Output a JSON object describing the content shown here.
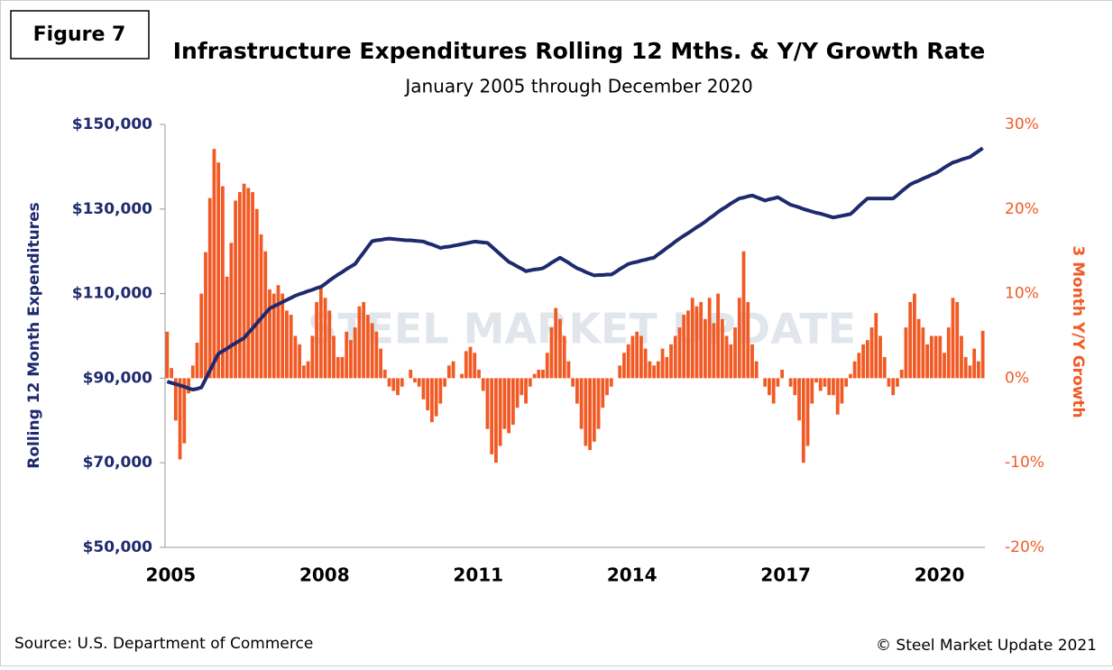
{
  "figure_label": "Figure 7",
  "chart_data": {
    "type": "combo",
    "title": "Infrastructure Expenditures Rolling 12 Mths. & Y/Y Growth Rate",
    "subtitle": "January 2005 through December 2020",
    "y_label": "Rolling 12 Month Expenditures",
    "y2_label": "3 Month Y/Y Growth",
    "watermark": "STEEL MARKET UPDATE",
    "source": "Source: U.S. Department of Commerce",
    "copyright": "© Steel Market Update 2021",
    "categories": [
      "2005",
      null,
      null,
      null,
      null,
      null,
      null,
      null,
      null,
      null,
      null,
      null,
      null,
      null,
      null,
      null,
      null,
      null,
      null,
      null,
      null,
      null,
      null,
      null,
      null,
      null,
      null,
      null,
      null,
      null,
      null,
      null,
      null,
      null,
      null,
      null,
      "2008",
      null,
      null,
      null,
      null,
      null,
      null,
      null,
      null,
      null,
      null,
      null,
      null,
      null,
      null,
      null,
      null,
      null,
      null,
      null,
      null,
      null,
      null,
      null,
      null,
      null,
      null,
      null,
      null,
      null,
      null,
      null,
      null,
      null,
      null,
      null,
      "2011",
      null,
      null,
      null,
      null,
      null,
      null,
      null,
      null,
      null,
      null,
      null,
      null,
      null,
      null,
      null,
      null,
      null,
      null,
      null,
      null,
      null,
      null,
      null,
      null,
      null,
      null,
      null,
      null,
      null,
      null,
      null,
      null,
      null,
      null,
      null,
      "2014",
      null,
      null,
      null,
      null,
      null,
      null,
      null,
      null,
      null,
      null,
      null,
      null,
      null,
      null,
      null,
      null,
      null,
      null,
      null,
      null,
      null,
      null,
      null,
      null,
      null,
      null,
      null,
      null,
      null,
      null,
      null,
      null,
      null,
      null,
      null,
      "2017",
      null,
      null,
      null,
      null,
      null,
      null,
      null,
      null,
      null,
      null,
      null,
      null,
      null,
      null,
      null,
      null,
      null,
      null,
      null,
      null,
      null,
      null,
      null,
      null,
      null,
      null,
      null,
      null,
      null,
      null,
      null,
      null,
      null,
      null,
      null,
      "2020",
      null,
      null,
      null,
      null,
      null,
      null,
      null,
      null,
      null,
      null,
      null
    ],
    "series": [
      {
        "type": "bar",
        "axis": "y2",
        "color": "#f15a24",
        "values": [
          5.5,
          1.2,
          -5,
          -9.6,
          -7.7,
          -1.8,
          1.5,
          4.2,
          10,
          14.9,
          21.3,
          27.1,
          25.5,
          22.7,
          12,
          16,
          21,
          22,
          23,
          22.5,
          22,
          20,
          17,
          15,
          10.5,
          10,
          11,
          10,
          8,
          7.5,
          5,
          4,
          1.5,
          2,
          5,
          9,
          10.8,
          9.5,
          8,
          5,
          2.5,
          2.5,
          5.5,
          4.5,
          6,
          8.5,
          9,
          7.5,
          6.5,
          5.5,
          3.5,
          1,
          -1,
          -1.5,
          -2,
          -1,
          0,
          1,
          -0.5,
          -1,
          -2.5,
          -3.8,
          -5.2,
          -4.5,
          -3,
          -1,
          1.5,
          2,
          0,
          0.5,
          3.2,
          3.7,
          3,
          1,
          -1.5,
          -6,
          -9,
          -10,
          -8,
          -6,
          -6.5,
          -5.5,
          -3.5,
          -2,
          -3,
          -1,
          0.5,
          1,
          1,
          3,
          6,
          8.3,
          7,
          5,
          2,
          -1,
          -3,
          -6,
          -8,
          -8.5,
          -7.5,
          -6,
          -3.5,
          -2,
          -1,
          0,
          1.5,
          3,
          4,
          5,
          5.5,
          5,
          3.5,
          2,
          1.5,
          2,
          3.5,
          2.5,
          4,
          5,
          6,
          7.5,
          8,
          9.5,
          8.5,
          9,
          7,
          9.5,
          6.5,
          10,
          7,
          5,
          4,
          6,
          9.5,
          15,
          9,
          4,
          2,
          0,
          -1,
          -2,
          -3,
          -1,
          1,
          0,
          -1,
          -2,
          -5,
          -10,
          -8,
          -3,
          -0.5,
          -1.5,
          -1,
          -2,
          -2,
          -4.3,
          -3,
          -1,
          0.5,
          2,
          3,
          4,
          4.5,
          6,
          7.7,
          5,
          2.5,
          -1,
          -2,
          -1,
          1,
          6,
          9,
          10,
          7,
          6,
          4,
          5,
          5,
          5,
          3,
          6,
          9.5,
          9,
          5,
          2.5,
          1.5,
          3.5,
          2,
          5.6
        ]
      },
      {
        "type": "line",
        "axis": "y",
        "color": "#1f2a6e",
        "values": [
          89200,
          88900,
          88600,
          88300,
          88000,
          87600,
          87300,
          87500,
          87800,
          89800,
          91800,
          93800,
          95800,
          96400,
          97000,
          97700,
          98300,
          98900,
          99500,
          100700,
          101800,
          103000,
          104200,
          105300,
          106500,
          107000,
          107500,
          108000,
          108500,
          109000,
          109500,
          109900,
          110200,
          110600,
          110900,
          111300,
          111600,
          112300,
          113100,
          113800,
          114500,
          115100,
          115800,
          116400,
          117000,
          118400,
          119700,
          121100,
          122400,
          122600,
          122700,
          122900,
          123000,
          122900,
          122800,
          122700,
          122600,
          122600,
          122500,
          122400,
          122300,
          121900,
          121600,
          121200,
          120800,
          121000,
          121100,
          121300,
          121500,
          121700,
          121900,
          122100,
          122300,
          122200,
          122100,
          122000,
          121100,
          120200,
          119300,
          118400,
          117500,
          117000,
          116400,
          115900,
          115300,
          115500,
          115700,
          115800,
          116000,
          116600,
          117300,
          117900,
          118500,
          117900,
          117300,
          116600,
          116000,
          115600,
          115100,
          114700,
          114300,
          114400,
          114400,
          114500,
          114500,
          115100,
          115800,
          116400,
          117000,
          117300,
          117500,
          117800,
          118000,
          118300,
          118500,
          119300,
          120000,
          120800,
          121500,
          122300,
          123000,
          123700,
          124300,
          125000,
          125700,
          126300,
          127000,
          127800,
          128500,
          129300,
          130000,
          130600,
          131300,
          131900,
          132500,
          132700,
          133000,
          133200,
          132800,
          132400,
          132000,
          132300,
          132500,
          132800,
          132200,
          131600,
          131000,
          130700,
          130400,
          130000,
          129700,
          129400,
          129100,
          128900,
          128600,
          128300,
          128000,
          128200,
          128400,
          128600,
          128800,
          129700,
          130700,
          131600,
          132500,
          132500,
          132500,
          132500,
          132500,
          132500,
          132500,
          133300,
          134200,
          135000,
          135800,
          136300,
          136700,
          137200,
          137600,
          138100,
          138500,
          139100,
          139800,
          140400,
          141000,
          141300,
          141700,
          142000,
          142300,
          143000,
          143700,
          144400
        ]
      }
    ],
    "ylim": [
      50000,
      150000
    ],
    "yticks": [
      {
        "value": 50000,
        "label": "$50,000"
      },
      {
        "value": 70000,
        "label": "$70,000"
      },
      {
        "value": 90000,
        "label": "$90,000"
      },
      {
        "value": 110000,
        "label": "$110,000"
      },
      {
        "value": 130000,
        "label": "$130,000"
      },
      {
        "value": 150000,
        "label": "$150,000"
      }
    ],
    "y2lim": [
      -20,
      30
    ],
    "y2ticks": [
      {
        "value": -20,
        "label": "-20%"
      },
      {
        "value": -10,
        "label": "-10%"
      },
      {
        "value": 0,
        "label": "0%"
      },
      {
        "value": 10,
        "label": "10%"
      },
      {
        "value": 20,
        "label": "20%"
      },
      {
        "value": 30,
        "label": "30%"
      }
    ],
    "y_label_color": "#1f2a6e",
    "y2_label_color": "#f15a24"
  }
}
